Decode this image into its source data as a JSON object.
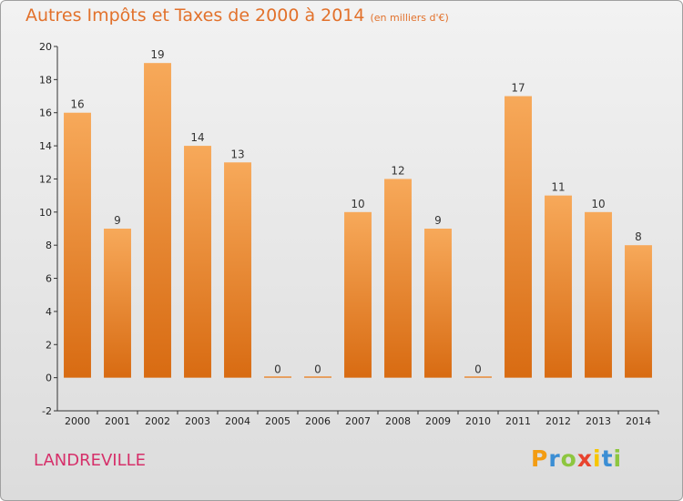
{
  "title": "Autres Impôts et Taxes de 2000 à 2014",
  "subtitle": "(en milliers d'€)",
  "commune": "LANDREVILLE",
  "logo": {
    "letters": [
      "P",
      "r",
      "o",
      "x",
      "i",
      "t",
      "i"
    ],
    "colors": [
      "#f39c12",
      "#3b8ed4",
      "#8dc63f",
      "#e8432e",
      "#f7c600",
      "#3b8ed4",
      "#8dc63f"
    ]
  },
  "colors": {
    "bar_top": "#f7a95a",
    "bar_bottom": "#d86b12",
    "title": "#e2712b",
    "commune": "#d6306a"
  },
  "chart_data": {
    "type": "bar",
    "title": "Autres Impôts et Taxes de 2000 à 2014",
    "subtitle": "(en milliers d'€)",
    "categories": [
      "2000",
      "2001",
      "2002",
      "2003",
      "2004",
      "2005",
      "2006",
      "2007",
      "2008",
      "2009",
      "2010",
      "2011",
      "2012",
      "2013",
      "2014"
    ],
    "values": [
      16,
      9,
      19,
      14,
      13,
      0,
      0,
      10,
      12,
      9,
      0,
      17,
      11,
      10,
      8
    ],
    "ylim": [
      -2,
      20
    ],
    "yticks": [
      -2,
      0,
      2,
      4,
      6,
      8,
      10,
      12,
      14,
      16,
      18,
      20
    ],
    "grid": false
  }
}
